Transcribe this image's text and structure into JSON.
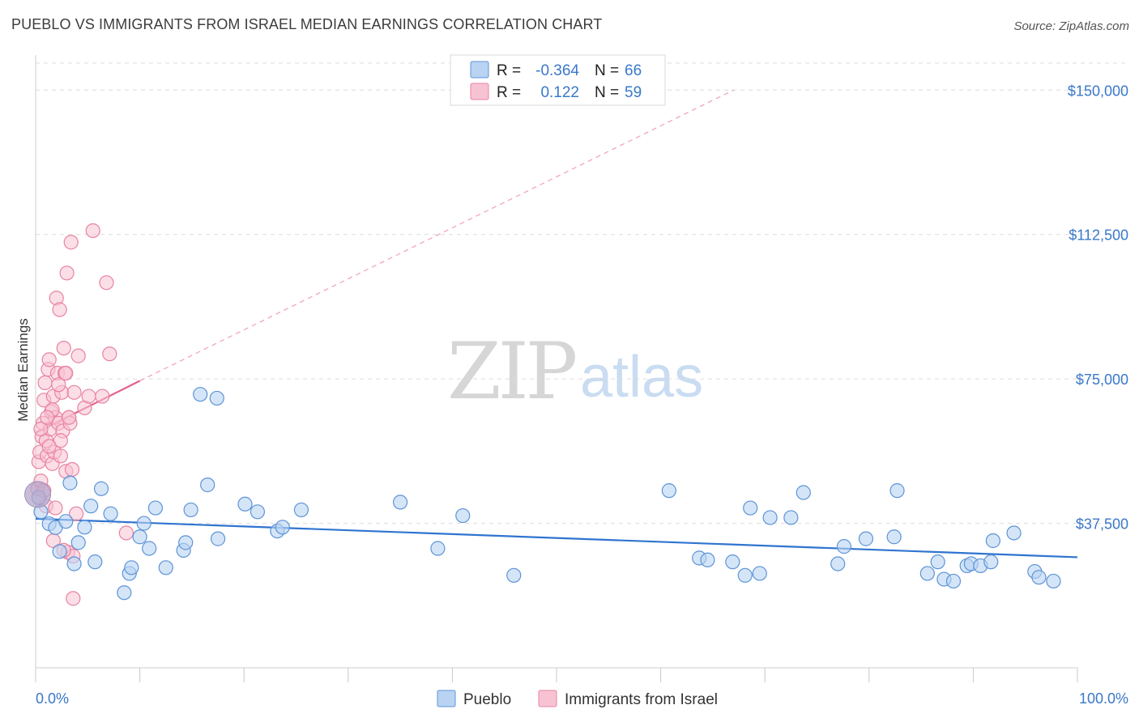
{
  "header": {
    "title": "PUEBLO VS IMMIGRANTS FROM ISRAEL MEDIAN EARNINGS CORRELATION CHART",
    "source": "Source: ZipAtlas.com"
  },
  "watermark": {
    "zip": "ZIP",
    "atlas": "atlas"
  },
  "stats_box": {
    "rows": [
      {
        "r_label": "R =",
        "r_value": "-0.364",
        "n_label": "N =",
        "n_value": "66"
      },
      {
        "r_label": "R =",
        "r_value": "0.122",
        "n_label": "N =",
        "n_value": "59"
      }
    ]
  },
  "legend": {
    "pueblo": "Pueblo",
    "israel": "Immigrants from Israel"
  },
  "colors": {
    "blue_fill": "#b9d3f3",
    "blue_stroke": "#5d94d6",
    "blue_line": "#2f74d0",
    "pink_fill": "#f7c3d2",
    "pink_stroke": "#e883a3",
    "pink_line": "#e4608a",
    "axis_text": "#3a78c9",
    "grid": "#dcdcdc"
  },
  "chart_data": {
    "type": "scatter",
    "title": "PUEBLO VS IMMIGRANTS FROM ISRAEL MEDIAN EARNINGS CORRELATION CHART",
    "xlabel": "",
    "ylabel": "Median Earnings",
    "xlim": [
      0,
      100
    ],
    "ylim": [
      0,
      157000
    ],
    "x_tick_labels": [
      "0.0%",
      "100.0%"
    ],
    "y_ticks": [
      37500,
      75000,
      112500,
      150000
    ],
    "y_tick_labels": [
      "$37,500",
      "$75,000",
      "$112,500",
      "$150,000"
    ],
    "grid": true,
    "legend_position": "bottom-center",
    "series": [
      {
        "name": "Pueblo",
        "r": -0.364,
        "n": 66,
        "trend": {
          "x": [
            0,
            100
          ],
          "y": [
            38700,
            28700
          ],
          "style": "solid"
        },
        "points": [
          [
            0.3,
            44200
          ],
          [
            0.5,
            40500
          ],
          [
            1.3,
            37400
          ],
          [
            1.9,
            36400
          ],
          [
            2.3,
            30200
          ],
          [
            2.9,
            38000
          ],
          [
            3.3,
            48000
          ],
          [
            3.7,
            27000
          ],
          [
            4.1,
            32500
          ],
          [
            4.7,
            36500
          ],
          [
            5.3,
            42000
          ],
          [
            5.7,
            27500
          ],
          [
            6.3,
            46500
          ],
          [
            7.2,
            40000
          ],
          [
            8.5,
            19500
          ],
          [
            9.0,
            24500
          ],
          [
            9.2,
            26000
          ],
          [
            10.0,
            34000
          ],
          [
            10.4,
            37500
          ],
          [
            10.9,
            31000
          ],
          [
            11.5,
            41500
          ],
          [
            12.5,
            26000
          ],
          [
            14.2,
            30500
          ],
          [
            14.4,
            32500
          ],
          [
            14.9,
            41000
          ],
          [
            15.8,
            71000
          ],
          [
            16.5,
            47500
          ],
          [
            17.4,
            70000
          ],
          [
            17.5,
            33500
          ],
          [
            20.1,
            42500
          ],
          [
            21.3,
            40500
          ],
          [
            23.2,
            35500
          ],
          [
            23.7,
            36500
          ],
          [
            25.5,
            41000
          ],
          [
            35.0,
            43000
          ],
          [
            38.6,
            31000
          ],
          [
            41.0,
            39500
          ],
          [
            45.9,
            24000
          ],
          [
            60.8,
            46000
          ],
          [
            63.7,
            28500
          ],
          [
            64.5,
            28000
          ],
          [
            66.9,
            27500
          ],
          [
            68.1,
            24000
          ],
          [
            68.6,
            41500
          ],
          [
            69.5,
            24500
          ],
          [
            70.5,
            39000
          ],
          [
            72.5,
            39000
          ],
          [
            73.7,
            45500
          ],
          [
            77.0,
            27000
          ],
          [
            77.6,
            31500
          ],
          [
            79.7,
            33500
          ],
          [
            82.4,
            34000
          ],
          [
            82.7,
            46000
          ],
          [
            85.6,
            24500
          ],
          [
            86.6,
            27500
          ],
          [
            87.2,
            23000
          ],
          [
            88.1,
            22500
          ],
          [
            89.4,
            26500
          ],
          [
            89.8,
            27000
          ],
          [
            90.7,
            26500
          ],
          [
            91.7,
            27500
          ],
          [
            91.9,
            33000
          ],
          [
            93.9,
            35000
          ],
          [
            95.9,
            25000
          ],
          [
            96.3,
            23500
          ],
          [
            97.7,
            22500
          ]
        ]
      },
      {
        "name": "Immigrants from Israel",
        "r": 0.122,
        "n": 59,
        "trend": {
          "x": [
            0,
            10
          ],
          "y": [
            61000,
            74500
          ],
          "style": "solid"
        },
        "trend_extension": {
          "x": [
            10,
            67
          ],
          "y": [
            74500,
            150000
          ],
          "style": "dashed"
        },
        "points": [
          [
            0.2,
            46500
          ],
          [
            0.3,
            53500
          ],
          [
            0.4,
            56000
          ],
          [
            0.5,
            48500
          ],
          [
            0.6,
            60000
          ],
          [
            0.7,
            63500
          ],
          [
            0.8,
            69500
          ],
          [
            0.9,
            74000
          ],
          [
            1.0,
            59000
          ],
          [
            1.1,
            55000
          ],
          [
            1.2,
            77500
          ],
          [
            1.3,
            80000
          ],
          [
            1.4,
            62000
          ],
          [
            1.5,
            66500
          ],
          [
            1.6,
            53000
          ],
          [
            1.7,
            70500
          ],
          [
            1.8,
            56000
          ],
          [
            1.9,
            65000
          ],
          [
            2.0,
            96000
          ],
          [
            2.1,
            76500
          ],
          [
            2.2,
            63500
          ],
          [
            2.3,
            93000
          ],
          [
            2.4,
            55000
          ],
          [
            2.5,
            71500
          ],
          [
            2.6,
            61500
          ],
          [
            2.7,
            83000
          ],
          [
            2.8,
            76500
          ],
          [
            2.9,
            51000
          ],
          [
            3.0,
            102500
          ],
          [
            3.1,
            30000
          ],
          [
            3.2,
            65000
          ],
          [
            3.3,
            63500
          ],
          [
            3.4,
            110500
          ],
          [
            3.5,
            51500
          ],
          [
            3.6,
            29000
          ],
          [
            3.7,
            71500
          ],
          [
            3.9,
            40000
          ],
          [
            4.1,
            81000
          ],
          [
            4.7,
            67500
          ],
          [
            5.1,
            70500
          ],
          [
            5.5,
            113500
          ],
          [
            6.4,
            70500
          ],
          [
            6.8,
            100000
          ],
          [
            7.1,
            81500
          ],
          [
            8.7,
            35000
          ],
          [
            1.7,
            33000
          ],
          [
            2.7,
            30500
          ],
          [
            3.6,
            18000
          ],
          [
            1.0,
            42000
          ],
          [
            0.8,
            46000
          ],
          [
            1.9,
            41500
          ],
          [
            2.4,
            59000
          ],
          [
            0.5,
            62000
          ],
          [
            1.3,
            57500
          ],
          [
            3.2,
            65000
          ],
          [
            1.6,
            67000
          ],
          [
            2.2,
            73500
          ],
          [
            2.9,
            76500
          ],
          [
            1.1,
            65000
          ]
        ]
      }
    ],
    "highlight_point": {
      "series": "Pueblo",
      "x": 0.2,
      "y": 45000,
      "note": "large marker at origin edge"
    }
  }
}
